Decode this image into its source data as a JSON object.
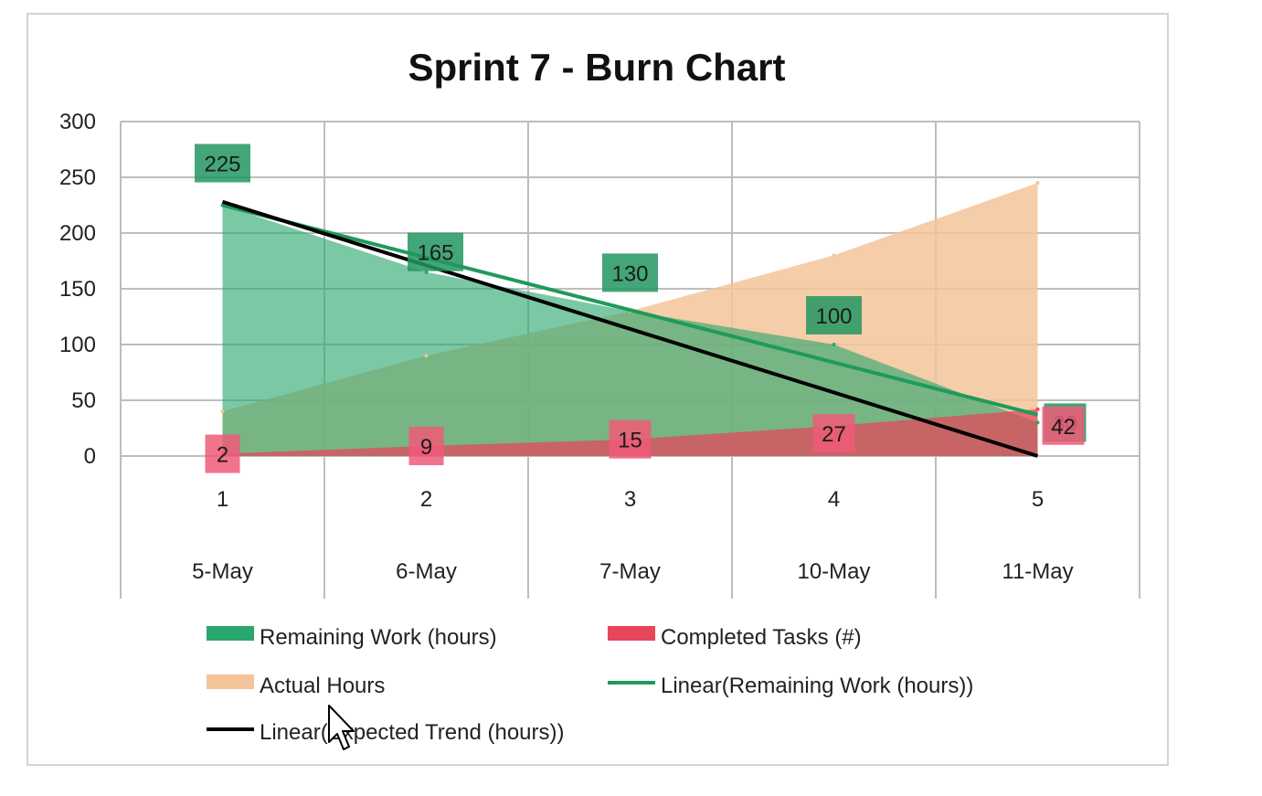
{
  "chart_data": {
    "type": "area",
    "title": "Sprint 7 - Burn Chart",
    "xlabel": "",
    "ylabel": "",
    "ylim": [
      0,
      300
    ],
    "yticks": [
      "300",
      "250",
      "200",
      "150",
      "100",
      "50",
      "0"
    ],
    "categories": [
      "1",
      "2",
      "3",
      "4",
      "5"
    ],
    "date_labels": [
      "5-May",
      "6-May",
      "7-May",
      "10-May",
      "11-May"
    ],
    "grid": true,
    "legend_position": "bottom",
    "series": [
      {
        "name": "Remaining Work (hours)",
        "kind": "area",
        "color": "#2aa66e",
        "values": [
          225,
          165,
          130,
          100,
          30
        ],
        "labels": [
          "225",
          "165",
          "130",
          "100",
          "30"
        ]
      },
      {
        "name": "Actual Hours",
        "kind": "area",
        "color": "#f4c49a",
        "values": [
          40,
          90,
          130,
          180,
          245
        ]
      },
      {
        "name": "Completed Tasks (#)",
        "kind": "area",
        "color": "#e6455a",
        "values": [
          2,
          9,
          15,
          27,
          42
        ],
        "labels": [
          "2",
          "9",
          "15",
          "27",
          "42"
        ]
      },
      {
        "name": "Linear(Remaining Work (hours))",
        "kind": "trendline",
        "color": "#1f9a5a",
        "values": [
          225,
          178,
          131,
          84,
          37
        ]
      },
      {
        "name": "Linear(Expected Trend (hours))",
        "kind": "trendline",
        "color": "#000000",
        "values": [
          228,
          171,
          114,
          57,
          0
        ]
      }
    ],
    "legend": [
      {
        "label": "Remaining Work (hours)",
        "swatch": "box",
        "color": "#2aa66e"
      },
      {
        "label": "Completed Tasks (#)",
        "swatch": "box",
        "color": "#e6455a"
      },
      {
        "label": "Actual Hours",
        "swatch": "box",
        "color": "#f4c49a"
      },
      {
        "label": "Linear(Remaining Work (hours))",
        "swatch": "line",
        "color": "#1f9a5a"
      },
      {
        "label": "Linear(Expected Trend (hours))",
        "swatch": "line",
        "color": "#000000",
        "shown_text": "Linear(",
        "hidden_by_cursor": "Ex",
        "trailing_text": "pected Trend (hours))"
      }
    ]
  }
}
